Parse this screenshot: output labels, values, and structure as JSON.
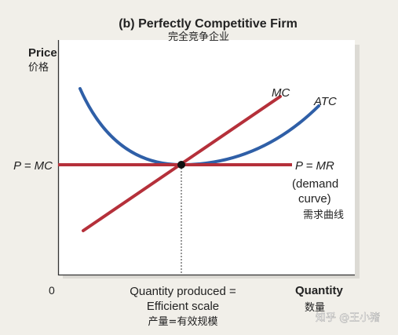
{
  "title": "(b) Perfectly Competitive Firm",
  "title_cn": "完全竞争企业",
  "y_axis": {
    "label": "Price",
    "label_cn": "价格"
  },
  "x_axis": {
    "label": "Quantity",
    "label_cn": "数量",
    "origin": "0",
    "marker_label_1": "Quantity produced =",
    "marker_label_2": "Efficient scale",
    "marker_label_cn": "产量=有效规模"
  },
  "price_level_label": "P = MC",
  "curves": {
    "mc": {
      "label": "MC",
      "color": "#b5303a"
    },
    "atc": {
      "label": "ATC",
      "color": "#2f5fa7"
    },
    "demand": {
      "label_1": "P = MR",
      "label_2": "(demand",
      "label_3": "curve)",
      "label_cn": "需求曲线",
      "color": "#b5303a"
    }
  },
  "watermark": "知乎 @王小猪",
  "colors": {
    "background": "#f1efe9",
    "plot_background": "#ffffff",
    "axis": "#333333"
  }
}
